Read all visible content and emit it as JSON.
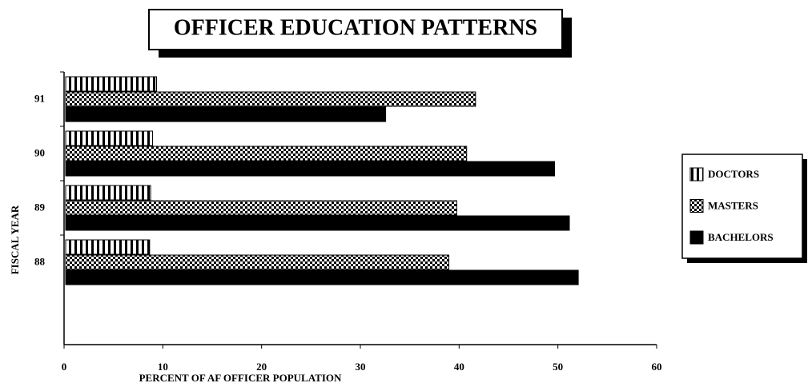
{
  "chart_data": {
    "type": "hbar",
    "title": "OFFICER EDUCATION PATTERNS",
    "x_label": "PERCENT OF AF OFFICER POPULATION",
    "y_label": "FISCAL YEAR",
    "categories": [
      "91",
      "90",
      "89",
      "88"
    ],
    "series": [
      {
        "name": "DOCTORS",
        "color": "#000000",
        "pattern": "vertical-stripes",
        "values": [
          9.2,
          8.8,
          8.6,
          8.5
        ]
      },
      {
        "name": "MASTERS",
        "color": "#000000",
        "pattern": "crosshatch",
        "values": [
          41.5,
          40.6,
          39.6,
          38.8
        ]
      },
      {
        "name": "BACHELORS",
        "color": "#000000",
        "pattern": "solid",
        "values": [
          32.4,
          49.5,
          51.0,
          51.9
        ]
      }
    ],
    "xlim": [
      0,
      60
    ],
    "xticks": [
      0,
      10,
      20,
      30,
      40,
      50,
      60
    ],
    "legend": "right"
  }
}
